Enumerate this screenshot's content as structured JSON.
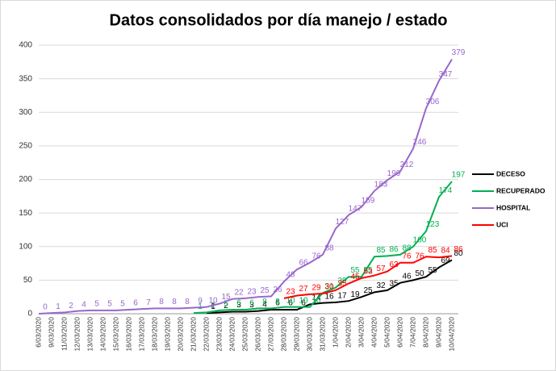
{
  "chart_data": {
    "type": "line",
    "title": "Datos consolidados por día manejo / estado",
    "categories": [
      "6/03/2020",
      "9/03/2020",
      "11/03/2020",
      "12/03/2020",
      "13/03/2020",
      "14/03/2020",
      "15/03/2020",
      "16/03/2020",
      "17/03/2020",
      "18/03/2020",
      "19/03/2020",
      "20/03/2020",
      "21/03/2020",
      "22/03/2020",
      "23/03/2020",
      "24/03/2020",
      "25/03/2020",
      "26/03/2020",
      "27/03/2020",
      "28/03/2020",
      "29/03/2020",
      "30/03/2020",
      "31/03/2020",
      "1/04/2020",
      "2/04/2020",
      "3/04/2020",
      "4/04/2020",
      "5/04/2020",
      "6/04/2020",
      "7/04/2020",
      "8/04/2020",
      "9/04/2020",
      "10/04/2020"
    ],
    "series": [
      {
        "name": "DECESO",
        "color": "#000000",
        "values": [
          null,
          null,
          null,
          null,
          null,
          null,
          null,
          null,
          null,
          null,
          null,
          null,
          null,
          1,
          2,
          3,
          3,
          4,
          6,
          6,
          6,
          14,
          16,
          17,
          19,
          25,
          32,
          35,
          46,
          50,
          55,
          69,
          80
        ]
      },
      {
        "name": "RECUPERADO",
        "color": "#00b050",
        "values": [
          null,
          null,
          null,
          null,
          null,
          null,
          null,
          null,
          null,
          null,
          null,
          null,
          1,
          2,
          5,
          6,
          6,
          8,
          8,
          10,
          10,
          10,
          31,
          39,
          55,
          55,
          85,
          86,
          88,
          100,
          123,
          174,
          197
        ]
      },
      {
        "name": "HOSPITAL",
        "color": "#9966cc",
        "values": [
          0,
          1,
          2,
          4,
          5,
          5,
          5,
          6,
          7,
          8,
          8,
          8,
          9,
          10,
          15,
          22,
          23,
          25,
          26,
          48,
          66,
          76,
          88,
          127,
          147,
          159,
          183,
          199,
          212,
          246,
          306,
          347,
          379
        ]
      },
      {
        "name": "UCI",
        "color": "#ff0000",
        "values": [
          null,
          null,
          null,
          null,
          null,
          null,
          null,
          null,
          null,
          null,
          null,
          null,
          null,
          null,
          null,
          null,
          null,
          null,
          null,
          23,
          27,
          29,
          30,
          35,
          45,
          53,
          57,
          63,
          76,
          76,
          85,
          84,
          86
        ]
      }
    ],
    "ylim": [
      0,
      400
    ],
    "yticks": [
      0,
      50,
      100,
      150,
      200,
      250,
      300,
      350,
      400
    ],
    "grid": true,
    "legend": "right"
  }
}
